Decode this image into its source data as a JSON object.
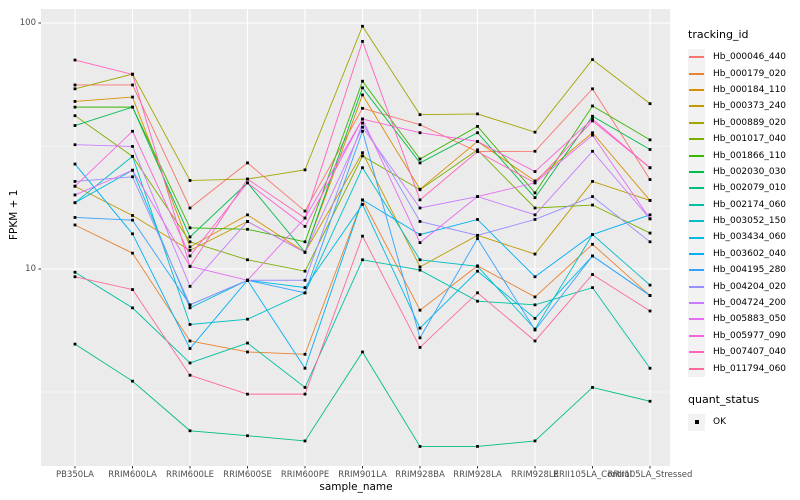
{
  "y_axis": {
    "label": "FPKM + 1",
    "ticks": [
      {
        "value": 100,
        "label": "100"
      },
      {
        "value": 10,
        "label": "10"
      }
    ]
  },
  "x_axis": {
    "label": "sample_name"
  },
  "legend": {
    "tracking_title": "tracking_id",
    "quant_title": "quant_status",
    "quant_items": [
      {
        "label": "OK",
        "marker": "black-square"
      }
    ]
  },
  "panel": {
    "bg": "#EBEBEB",
    "grid_color": "#FFFFFF"
  },
  "chart_data": {
    "type": "line",
    "title": "",
    "xlabel": "sample_name",
    "ylabel": "FPKM + 1",
    "y_scale": "log10",
    "ylim": [
      1.6,
      113
    ],
    "y_major_ticks": [
      10,
      100
    ],
    "y_minor_ticks": [
      3.162,
      31.62
    ],
    "grid": true,
    "legend_position": "right",
    "marker": "black-square",
    "categories": [
      "PB350LA",
      "RRIM600LA",
      "RRIM600LE",
      "RRIM600SE",
      "RRIM600PE",
      "RRIM901LA",
      "RRIM928BA",
      "RRIM928LA",
      "RRIM928LE",
      "RRII105LA_Control",
      "RRII105LA_Stressed"
    ],
    "series": [
      {
        "name": "Hb_000046_440",
        "color": "#F8766D",
        "values": [
          56,
          56,
          17.7,
          27,
          17.2,
          45,
          38.6,
          30,
          30.1,
          54,
          23.1
        ]
      },
      {
        "name": "Hb_000179_020",
        "color": "#EA8331",
        "values": [
          15.1,
          11.6,
          5.1,
          4.6,
          4.5,
          19.1,
          6.8,
          10.3,
          7.7,
          12.6,
          7.8
        ]
      },
      {
        "name": "Hb_000184_110",
        "color": "#D89000",
        "values": [
          48,
          50,
          12.3,
          16.6,
          11.7,
          51,
          21.1,
          33,
          22.8,
          35.8,
          19
        ]
      },
      {
        "name": "Hb_000373_240",
        "color": "#C09B00",
        "values": [
          21.7,
          16.5,
          11.9,
          15.6,
          11.7,
          29.7,
          10.2,
          13.7,
          11.5,
          22.7,
          19
        ]
      },
      {
        "name": "Hb_000889_020",
        "color": "#A3A500",
        "values": [
          54,
          62,
          22.9,
          23.2,
          25.3,
          97,
          42.4,
          42.7,
          36,
          71,
          47
        ]
      },
      {
        "name": "Hb_001017_040",
        "color": "#7CAE00",
        "values": [
          42,
          28.7,
          12.9,
          10.9,
          9.8,
          28.8,
          21,
          30.5,
          17.7,
          18.2,
          14
        ]
      },
      {
        "name": "Hb_001866_110",
        "color": "#39B600",
        "values": [
          45.5,
          45.5,
          14.7,
          14.5,
          12.9,
          58,
          28,
          38,
          20.4,
          46,
          33.5
        ]
      },
      {
        "name": "Hb_002030_030",
        "color": "#00BB4E",
        "values": [
          38.3,
          45.5,
          13.5,
          22.4,
          11.7,
          54.5,
          27,
          35.8,
          19.5,
          41.8,
          30.6
        ]
      },
      {
        "name": "Hb_002079_010",
        "color": "#00BF7D",
        "values": [
          4.95,
          3.5,
          2.2,
          2.1,
          2.0,
          4.6,
          1.9,
          1.9,
          2.0,
          3.3,
          2.9
        ]
      },
      {
        "name": "Hb_002174_060",
        "color": "#00C1A3",
        "values": [
          9.7,
          6.95,
          4.15,
          5.0,
          3.3,
          10.9,
          9.9,
          7.4,
          7.15,
          8.4,
          3.95
        ]
      },
      {
        "name": "Hb_003052_150",
        "color": "#00BFC4",
        "values": [
          18.6,
          28.7,
          5.95,
          6.25,
          8.0,
          25.8,
          10.9,
          10.25,
          5.7,
          13.8,
          8.6
        ]
      },
      {
        "name": "Hb_003434_060",
        "color": "#00BAE0",
        "values": [
          18.6,
          25.2,
          6.95,
          9.0,
          8.4,
          18.3,
          5.75,
          9.8,
          6.3,
          11.3,
          7.8
        ]
      },
      {
        "name": "Hb_003602_040",
        "color": "#00B0F6",
        "values": [
          26.7,
          13.9,
          4.75,
          9.0,
          3.95,
          19.1,
          13.8,
          15.9,
          9.3,
          13.8,
          16.6
        ]
      },
      {
        "name": "Hb_004195_280",
        "color": "#35A2FF",
        "values": [
          16.2,
          15.8,
          7.15,
          9.0,
          8.0,
          36.3,
          5.25,
          13.3,
          5.65,
          11.3,
          7.8
        ]
      },
      {
        "name": "Hb_004204_020",
        "color": "#9590FF",
        "values": [
          22.7,
          23.7,
          7.15,
          9.0,
          9.0,
          39.2,
          15.6,
          13.7,
          15.9,
          19.7,
          12.9
        ]
      },
      {
        "name": "Hb_004724_200",
        "color": "#C77CFF",
        "values": [
          32,
          31.5,
          8.5,
          15.6,
          11.7,
          37.7,
          17.7,
          19.7,
          16.6,
          30.1,
          16
        ]
      },
      {
        "name": "Hb_005883_050",
        "color": "#E76BF3",
        "values": [
          20,
          25.2,
          10.25,
          9.0,
          16.1,
          40.7,
          12.8,
          19.7,
          22.4,
          35,
          16
        ]
      },
      {
        "name": "Hb_005977_090",
        "color": "#FA62DB",
        "values": [
          21.7,
          36.3,
          11.3,
          22.4,
          14.9,
          40.7,
          35.8,
          33,
          24.9,
          40.7,
          25.8
        ]
      },
      {
        "name": "Hb_007407_040",
        "color": "#FF62BC",
        "values": [
          70.7,
          61.8,
          10.25,
          23.2,
          16.1,
          84.2,
          19.1,
          30,
          22.4,
          40,
          25.8
        ]
      },
      {
        "name": "Hb_011794_060",
        "color": "#FF6A98",
        "values": [
          9.3,
          8.25,
          3.7,
          3.1,
          3.1,
          13.6,
          4.8,
          8.0,
          5.1,
          9.5,
          6.75
        ]
      }
    ]
  }
}
